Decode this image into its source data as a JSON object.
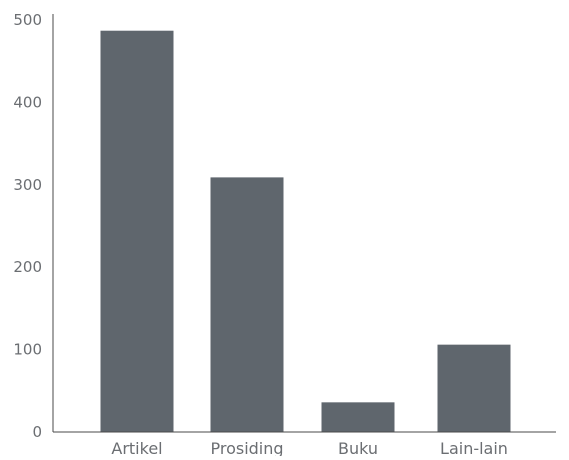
{
  "chart_data": {
    "type": "bar",
    "title": "",
    "xlabel": "",
    "ylabel": "",
    "categories": [
      "Artikel",
      "Prosiding",
      "Buku",
      "Lain-lain"
    ],
    "values": [
      487,
      309,
      36,
      106
    ],
    "ylim": [
      0,
      500
    ],
    "yticks": [
      0,
      100,
      200,
      300,
      400,
      500
    ],
    "grid": false,
    "legend": "none",
    "bar_color": "#5f666d",
    "axis_color": "#4a4a4a"
  }
}
